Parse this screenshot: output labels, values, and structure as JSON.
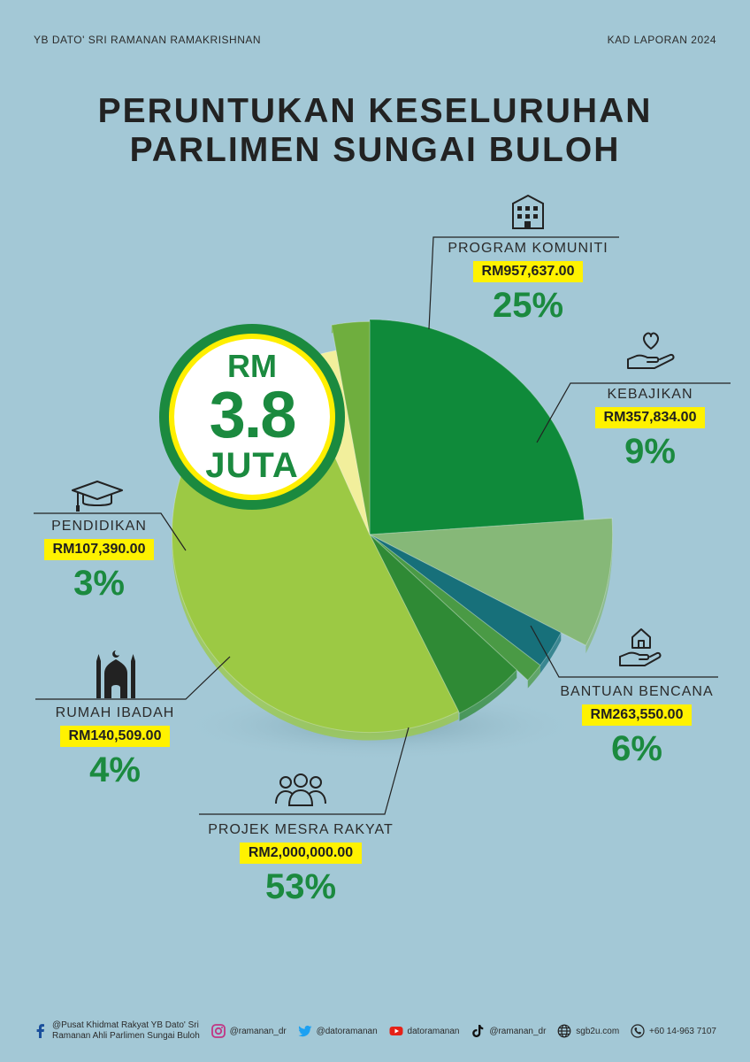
{
  "header": {
    "left": "YB DATO' SRI RAMANAN RAMAKRISHNAN",
    "right": "KAD LAPORAN 2024"
  },
  "title": {
    "line1": "PERUNTUKAN KESELURUHAN",
    "line2": "PARLIMEN SUNGAI BULOH"
  },
  "total": {
    "prefix": "RM",
    "value": "3.8",
    "unit": "JUTA"
  },
  "chart_data": {
    "type": "pie",
    "title": "PERUNTUKAN KESELURUHAN PARLIMEN SUNGAI BULOH",
    "slices": [
      {
        "key": "program",
        "label": "PROGRAM KOMUNITI",
        "amount": "RM957,637.00",
        "pct_label": "25%",
        "value": 25,
        "color": "#0f8a3a"
      },
      {
        "key": "kebajikan",
        "label": "KEBAJIKAN",
        "amount": "RM357,834.00",
        "pct_label": "9%",
        "value": 9,
        "color": "#86b878"
      },
      {
        "key": "unlabeled_teal",
        "label": "",
        "value": 3,
        "color": "#17707a"
      },
      {
        "key": "unlabeled_green",
        "label": "",
        "value": 1.5,
        "color": "#4a9a45"
      },
      {
        "key": "bantuan",
        "label": "BANTUAN BENCANA",
        "amount": "RM263,550.00",
        "pct_label": "6%",
        "value": 6,
        "color": "#2f8a35"
      },
      {
        "key": "projek",
        "label": "PROJEK MESRA RAKYAT",
        "amount": "RM2,000,000.00",
        "pct_label": "53%",
        "value": 53,
        "color": "#9cc944"
      },
      {
        "key": "ibadah",
        "label": "RUMAH IBADAH",
        "amount": "RM140,509.00",
        "pct_label": "4%",
        "value": 4,
        "color": "#f2ef9c"
      },
      {
        "key": "pendidikan",
        "label": "PENDIDIKAN",
        "amount": "RM107,390.00",
        "pct_label": "3%",
        "value": 3,
        "color": "#6fae3e"
      }
    ]
  },
  "labels": {
    "program": {
      "name": "PROGRAM KOMUNITI",
      "amount": "RM957,637.00",
      "pct": "25%"
    },
    "kebajikan": {
      "name": "KEBAJIKAN",
      "amount": "RM357,834.00",
      "pct": "9%"
    },
    "bantuan": {
      "name": "BANTUAN BENCANA",
      "amount": "RM263,550.00",
      "pct": "6%"
    },
    "projek": {
      "name": "PROJEK MESRA RAKYAT",
      "amount": "RM2,000,000.00",
      "pct": "53%"
    },
    "ibadah": {
      "name": "RUMAH IBADAH",
      "amount": "RM140,509.00",
      "pct": "4%"
    },
    "pendidikan": {
      "name": "PENDIDIKAN",
      "amount": "RM107,390.00",
      "pct": "3%"
    }
  },
  "icons": {
    "program": "building-icon",
    "kebajikan": "heart-hand-icon",
    "bantuan": "house-hand-icon",
    "projek": "people-group-icon",
    "ibadah": "mosque-icon",
    "pendidikan": "graduation-cap-icon"
  },
  "footer": {
    "facebook_line1": "@Pusat Khidmat Rakyat YB Dato' Sri",
    "facebook_line2": "Ramanan Ahli Parlimen Sungai Buloh",
    "instagram": "@ramanan_dr",
    "twitter": "@datoramanan",
    "youtube": "datoramanan",
    "tiktok": "@ramanan_dr",
    "website": "sgb2u.com",
    "phone": "+60 14-963 7107"
  }
}
